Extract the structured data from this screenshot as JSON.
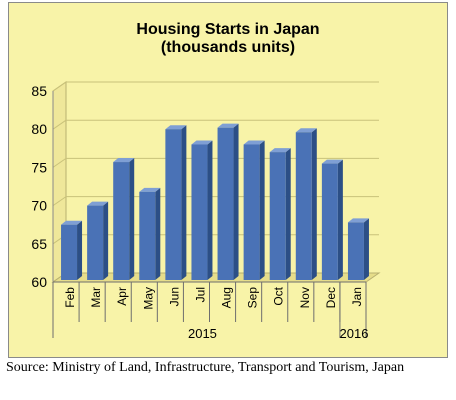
{
  "chart_data": {
    "type": "bar",
    "title": "Housing Starts in Japan",
    "subtitle": "(thousands units)",
    "categories": [
      "Feb",
      "Mar",
      "Apr",
      "May",
      "Jun",
      "Jul",
      "Aug",
      "Sep",
      "Oct",
      "Nov",
      "Dec",
      "Jan"
    ],
    "values": [
      67.5,
      70,
      75.7,
      71.8,
      80,
      78,
      80.2,
      78,
      77,
      79.6,
      75.5,
      67.8
    ],
    "year_groups": [
      {
        "label": "2015",
        "start": 0,
        "end": 10
      },
      {
        "label": "2016",
        "start": 11,
        "end": 11
      }
    ],
    "ylim": [
      60,
      85
    ],
    "yticks": [
      60,
      65,
      70,
      75,
      80,
      85
    ],
    "xlabel": "",
    "ylabel": "",
    "grid": true,
    "legend": "none",
    "colors": {
      "bar_front": "#4a72b6",
      "bar_side": "#2c4f86",
      "bar_top": "#7f9fd4",
      "background": "#f8f3a8",
      "gridline": "#c9c27a"
    }
  },
  "source_note": {
    "label": "Source: Ministry of Land, Infrastructure, Transport and Tourism, Japan"
  }
}
